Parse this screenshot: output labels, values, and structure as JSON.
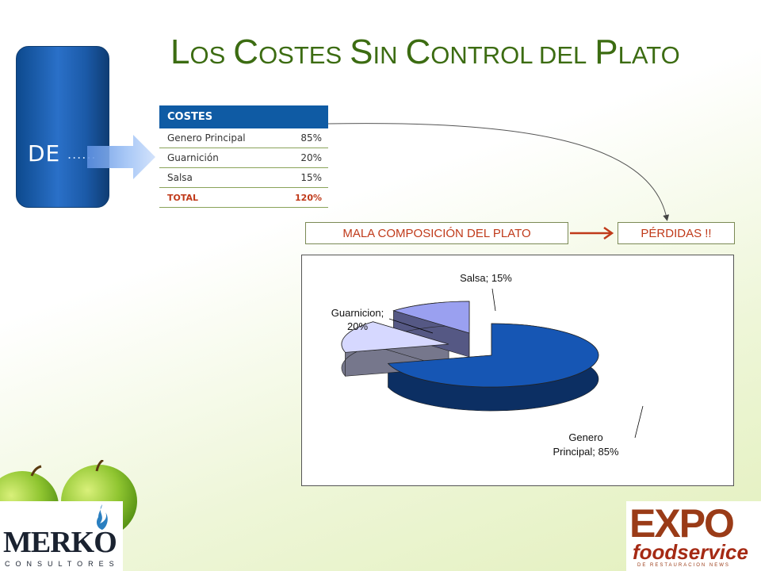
{
  "title": {
    "parts": [
      {
        "cap": "L",
        "rest": "OS"
      },
      {
        "cap": "C",
        "rest": "OSTES"
      },
      {
        "cap": "S",
        "rest": "IN"
      },
      {
        "cap": "C",
        "rest": "ONTROL DEL"
      },
      {
        "cap": "P",
        "rest": "LATO"
      }
    ]
  },
  "side_tab": {
    "label": "DE",
    "dots": "......"
  },
  "cost_table": {
    "header": "COSTES",
    "rows": [
      {
        "label": "Genero Principal",
        "value": "85%"
      },
      {
        "label": "Guarnición",
        "value": "20%"
      },
      {
        "label": "Salsa",
        "value": "15%"
      }
    ],
    "total": {
      "label": "TOTAL",
      "value": "120%"
    }
  },
  "flow": {
    "left_box": "MALA COMPOSICIÓN DEL PLATO",
    "right_box": "PÉRDIDAS !!"
  },
  "chart_data": {
    "type": "pie",
    "categories": [
      "Genero Principal",
      "Guarnicion",
      "Salsa"
    ],
    "values": [
      85,
      20,
      15
    ],
    "data_labels": [
      {
        "line1": "Genero",
        "line2": "Principal; 85%"
      },
      {
        "line1": "Guarnicion;",
        "line2": "20%"
      },
      {
        "line1": "Salsa; 15%",
        "line2": ""
      }
    ],
    "colors": [
      "#1656b4",
      "#d6d8ff",
      "#9aa0f0"
    ],
    "style": "3d-exploded"
  },
  "logos": {
    "merko": {
      "name": "MERKO",
      "sub": "CONSULTORES"
    },
    "expo": {
      "word": "EXPO",
      "sub": "foodservice",
      "tag": "DE RESTAURACION NEWS"
    }
  },
  "colors": {
    "title": "#3c6c12",
    "accent_red": "#c03a1a",
    "table_header": "#0f5ba4"
  }
}
